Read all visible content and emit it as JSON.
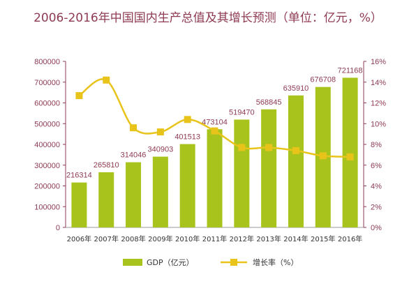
{
  "colors": {
    "bar": "#a8c41c",
    "line": "#e8c41a",
    "axis_text": "#8e3a52",
    "axis_line": "#8e3a52",
    "x_text": "#333333"
  },
  "chart_data": {
    "type": "bar",
    "title": "2006-2016年中国国内生产总值及其增长预测（单位：亿元，%）",
    "categories": [
      "2006年",
      "2007年",
      "2008年",
      "2009年",
      "2010年",
      "2011年",
      "2012年",
      "2013年",
      "2014年",
      "2015年",
      "2016年"
    ],
    "series": [
      {
        "name": "GDP（亿元）",
        "type": "bar",
        "axis": "left",
        "values": [
          216314,
          265810,
          314046,
          340903,
          401513,
          473104,
          519470,
          568845,
          635910,
          676708,
          721168
        ],
        "labels": [
          "216314",
          "265810",
          "314046",
          "340903",
          "401513",
          "473104",
          "519470",
          "568845",
          "635910",
          "676708",
          "721168"
        ]
      },
      {
        "name": "增长率（%）",
        "type": "line",
        "axis": "right",
        "values": [
          12.7,
          14.2,
          9.6,
          9.2,
          10.4,
          9.3,
          7.7,
          7.7,
          7.4,
          6.9,
          6.8
        ]
      }
    ],
    "y_left": {
      "min": 0,
      "max": 800000,
      "ticks": [
        "0",
        "100000",
        "200000",
        "300000",
        "400000",
        "500000",
        "600000",
        "700000",
        "800000"
      ]
    },
    "y_right": {
      "min": 0,
      "max": 16,
      "ticks": [
        "0%",
        "2%",
        "4%",
        "6%",
        "8%",
        "10%",
        "12%",
        "14%",
        "16%"
      ]
    },
    "grid": false,
    "legend_position": "bottom"
  }
}
